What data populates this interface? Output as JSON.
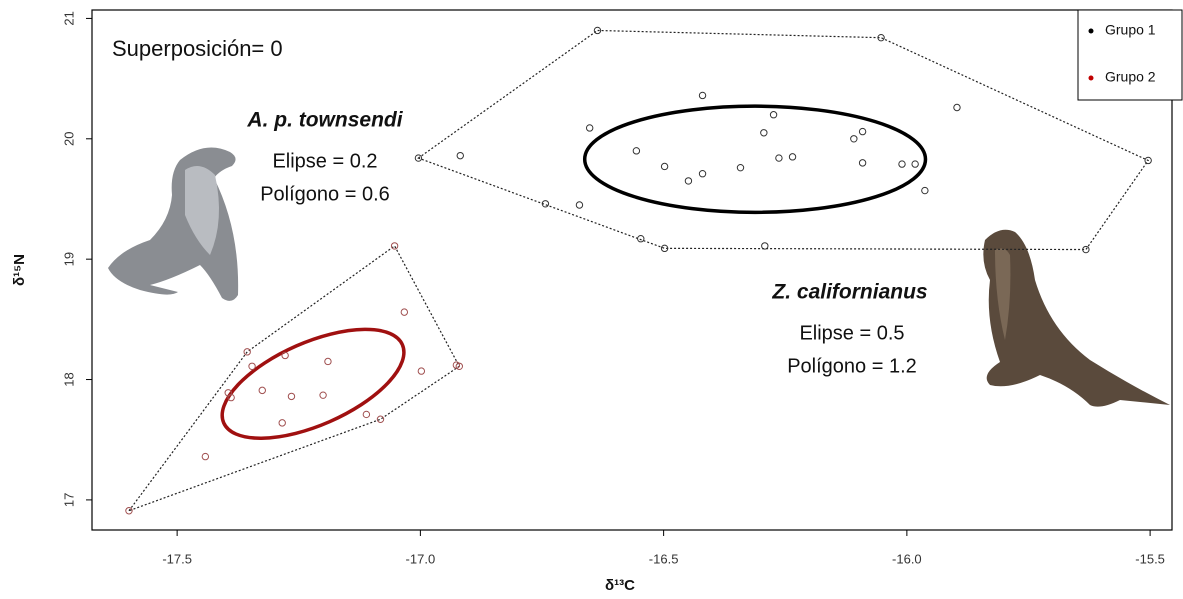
{
  "chart_data": {
    "type": "scatter",
    "xlabel": "δ¹³C",
    "ylabel": "δ¹⁵N",
    "xlim": [
      -17.675,
      -15.455
    ],
    "ylim": [
      16.75,
      21.07
    ],
    "xticks": [
      -17.5,
      {
        "value": -17,
        "label": "-17.0"
      },
      -16.5,
      {
        "value": -16,
        "label": "-16.0"
      },
      -15.5
    ],
    "yticks": [
      17,
      18,
      19,
      20,
      21
    ],
    "legend": "upper right",
    "annotations": [
      "Superposición= 0",
      "A. p. townsendi",
      "Elipse = 0.2",
      "Polígono = 0.6",
      "Z. californianus",
      "Elipse = 0.5",
      "Polígono = 1.2"
    ],
    "series": [
      {
        "name": "Grupo 1",
        "color": "#000000",
        "x": [
          -17.004,
          -16.918,
          -16.743,
          -16.673,
          -16.652,
          -16.636,
          -16.556,
          -16.547,
          -16.498,
          -16.498,
          -16.449,
          -16.42,
          -16.42,
          -16.342,
          -16.294,
          -16.292,
          -16.274,
          -16.263,
          -16.235,
          -16.109,
          -16.091,
          -16.091,
          -16.053,
          -16.01,
          -15.983,
          -15.963,
          -15.897,
          -15.632,
          -15.504
        ],
        "y": [
          19.84,
          19.86,
          19.46,
          19.45,
          20.09,
          20.9,
          19.9,
          19.17,
          19.77,
          19.09,
          19.65,
          19.71,
          20.36,
          19.76,
          20.05,
          19.11,
          20.2,
          19.84,
          19.85,
          20.0,
          20.06,
          19.8,
          20.84,
          19.79,
          19.79,
          19.57,
          20.26,
          19.08,
          19.82
        ]
      },
      {
        "name": "Grupo 2",
        "color": "#c00000",
        "x": [
          -17.599,
          -17.442,
          -17.395,
          -17.389,
          -17.356,
          -17.346,
          -17.325,
          -17.278,
          -17.284,
          -17.265,
          -17.2,
          -17.19,
          -17.111,
          -17.082,
          -17.053,
          -17.033,
          -16.998,
          -16.926,
          -16.92
        ],
        "y": [
          16.91,
          17.36,
          17.89,
          17.85,
          18.23,
          18.11,
          17.91,
          18.2,
          17.64,
          17.86,
          17.87,
          18.15,
          17.71,
          17.67,
          19.11,
          18.56,
          18.07,
          18.12,
          18.11
        ]
      }
    ]
  }
}
